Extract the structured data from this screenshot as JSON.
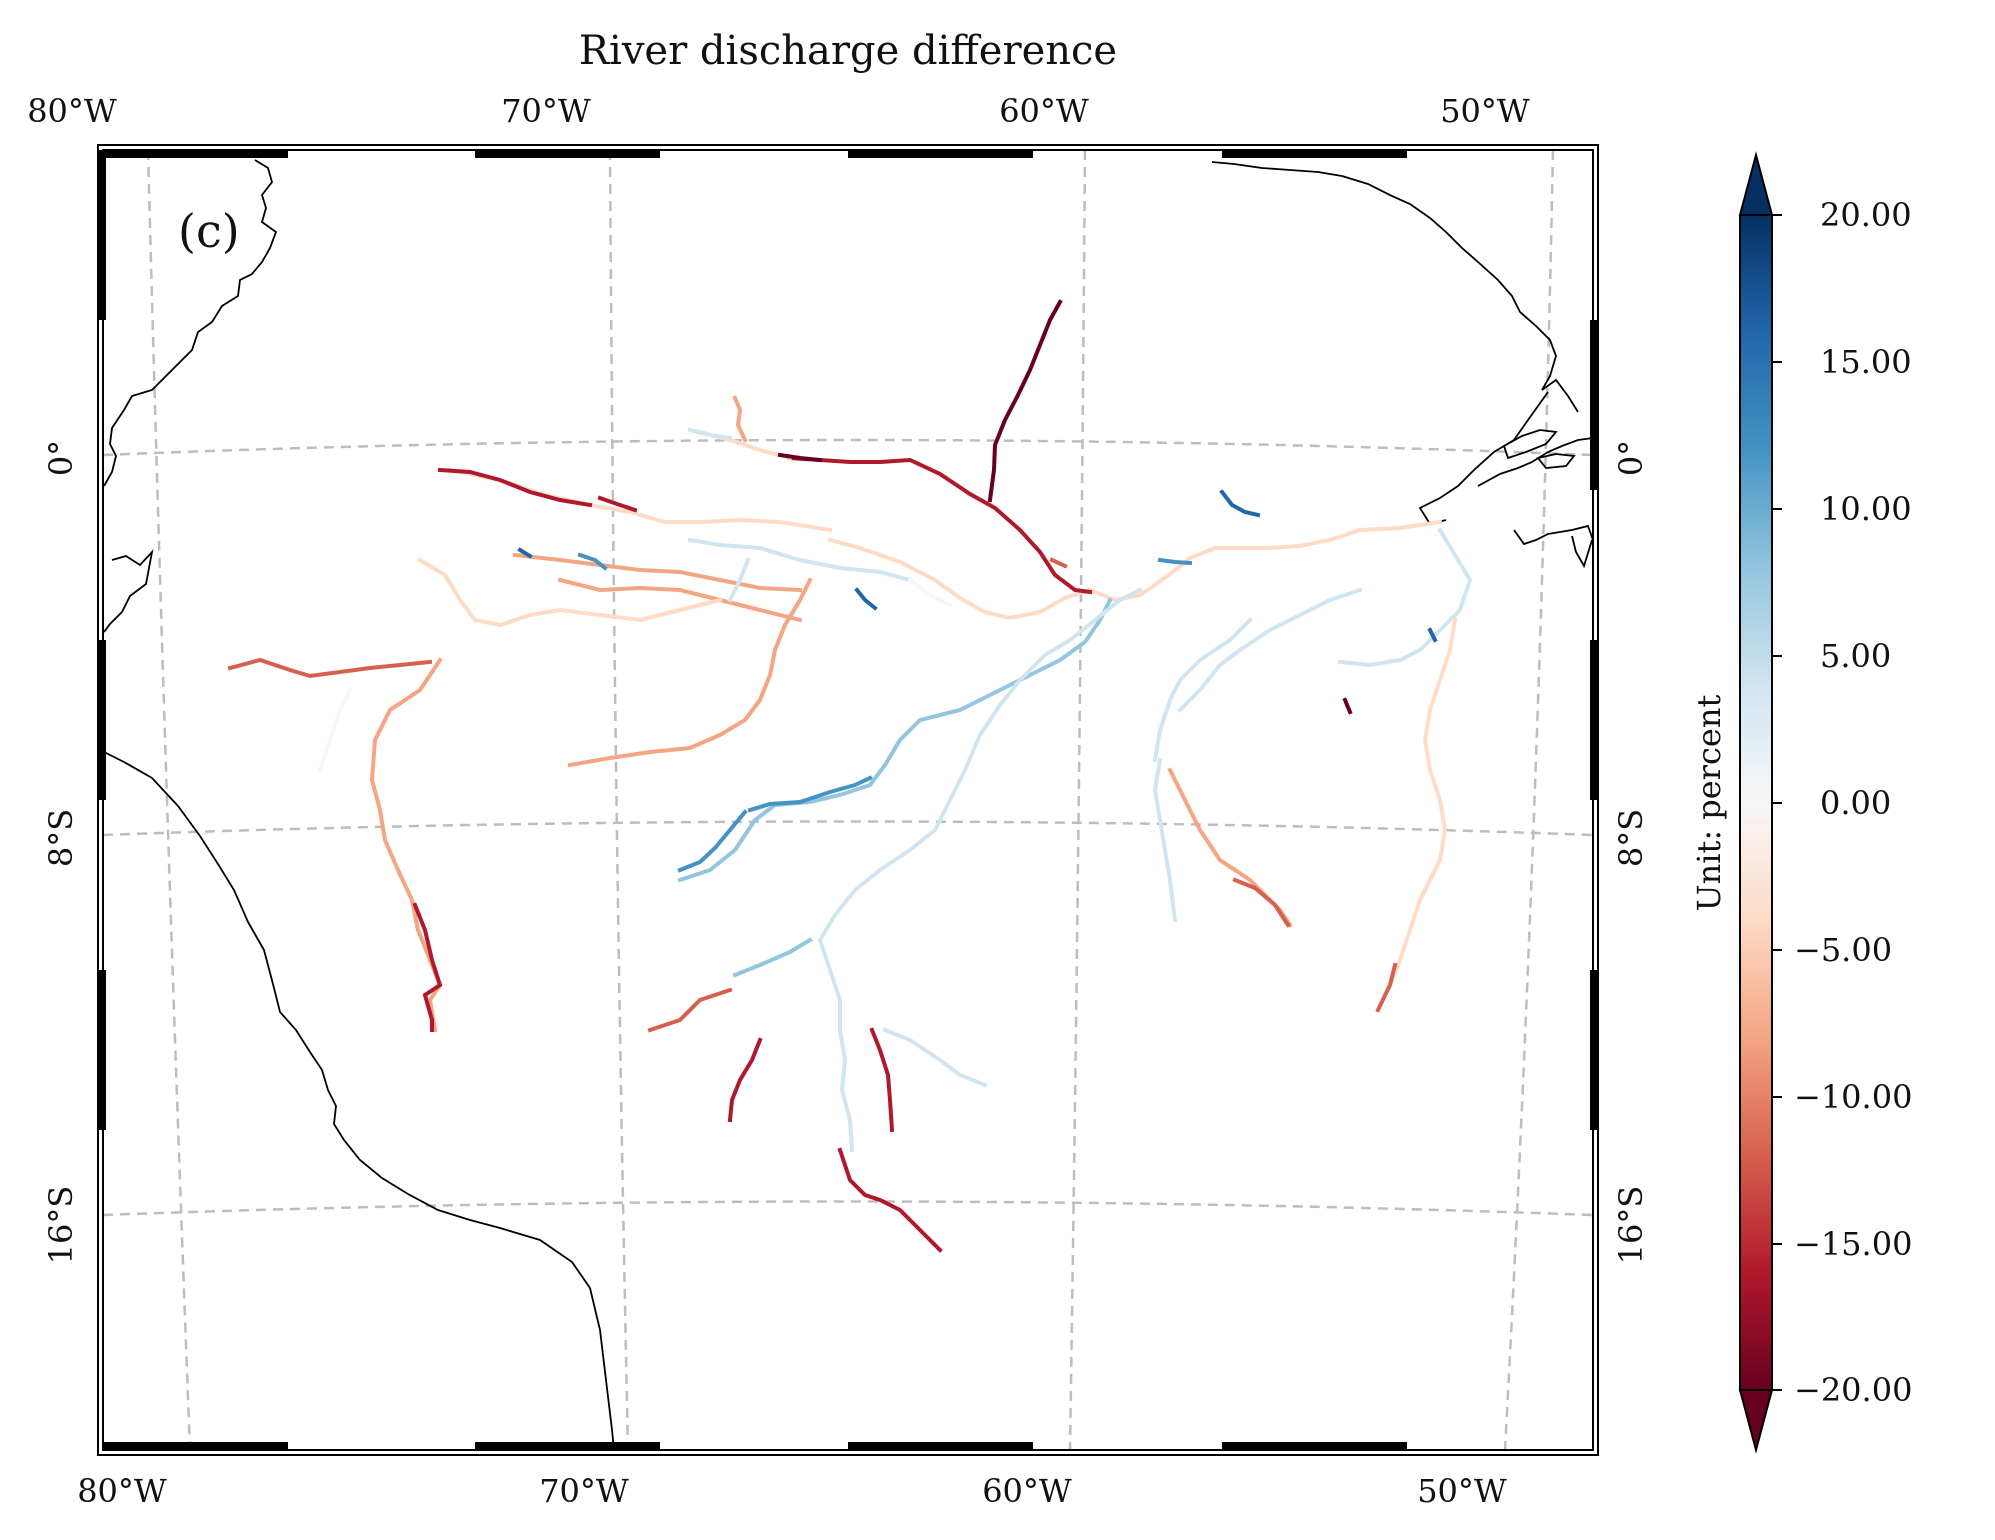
{
  "title": "River discharge difference",
  "panel_label": "(c)",
  "lon_labels_top": [
    "80°W",
    "70°W",
    "60°W",
    "50°W"
  ],
  "lon_labels_bottom": [
    "80°W",
    "70°W",
    "60°W",
    "50°W"
  ],
  "lat_labels_left": [
    "0°",
    "8°S",
    "16°S"
  ],
  "lat_labels_right": [
    "0°",
    "8°S",
    "16°S"
  ],
  "colorbar": {
    "label": "Unit: percent",
    "ticks": [
      "20.00",
      "15.00",
      "10.00",
      "5.00",
      "0.00",
      "−5.00",
      "−10.00",
      "−15.00",
      "−20.00"
    ],
    "vmin": -20,
    "vmax": 20,
    "colormap": "RdBu",
    "extend": "both",
    "colors": [
      "#67001f",
      "#b2182b",
      "#d6604d",
      "#f4a582",
      "#fddbc7",
      "#f7f7f7",
      "#d1e5f0",
      "#92c5de",
      "#4393c3",
      "#2166ac",
      "#053061"
    ]
  },
  "map": {
    "region": "Amazon basin, South America",
    "gridlines": "dashed gray",
    "coastline_color": "#000000"
  }
}
